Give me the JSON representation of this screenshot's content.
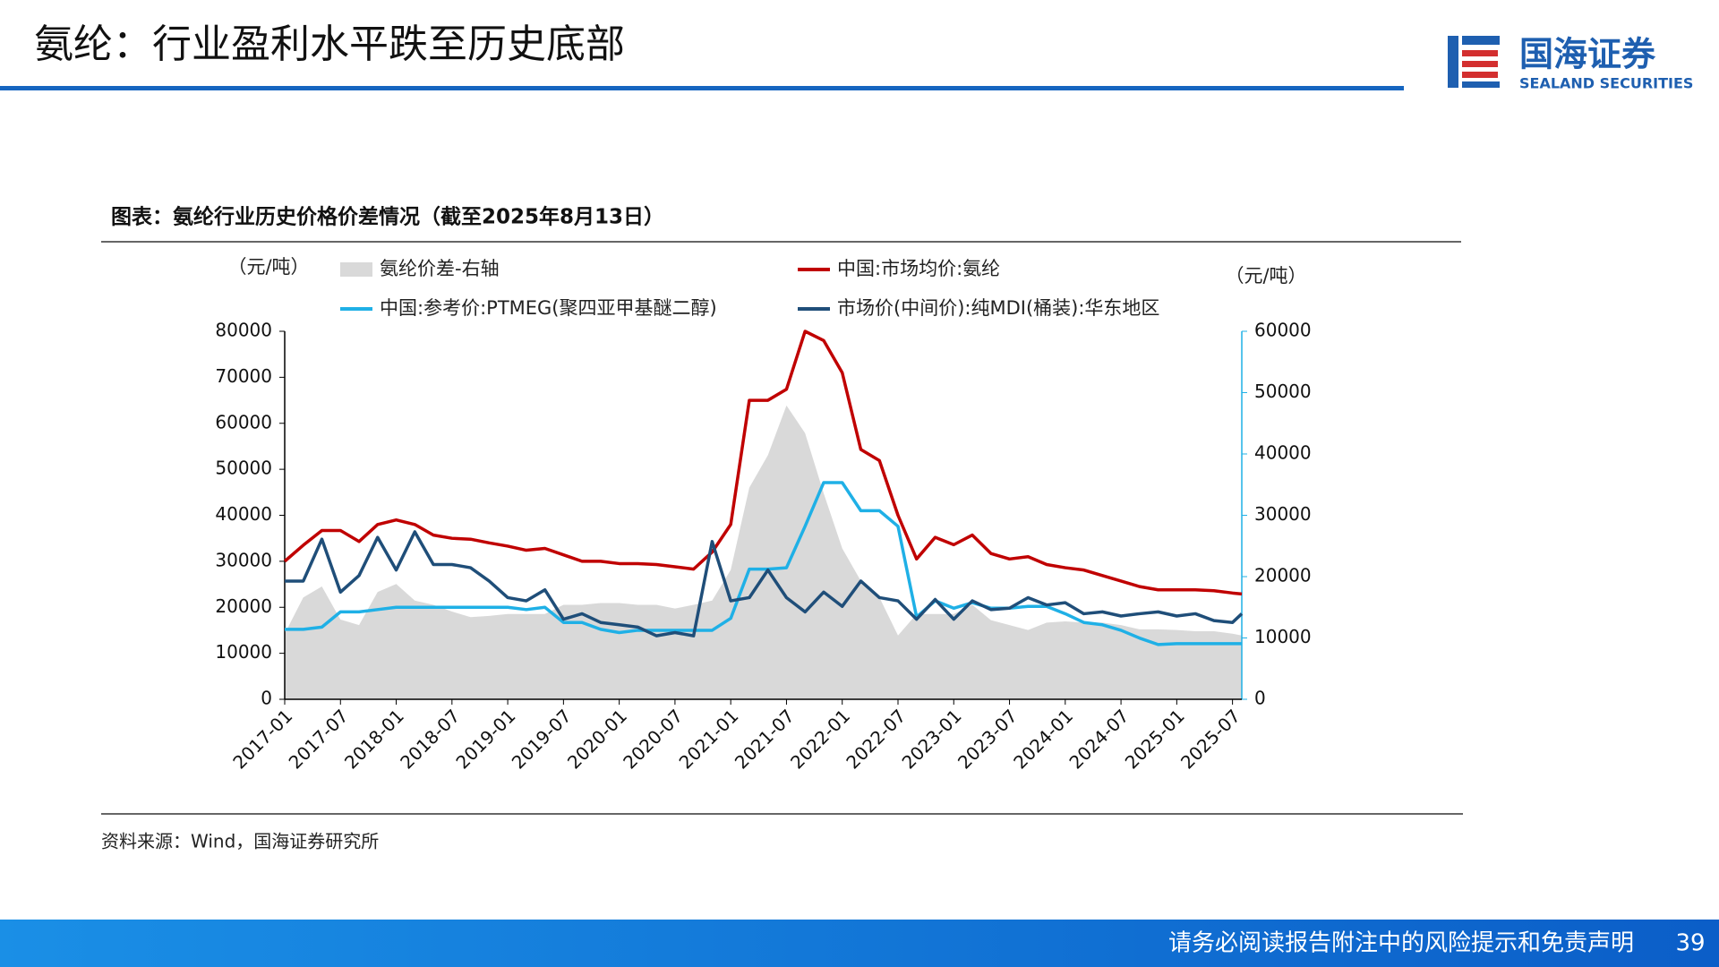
{
  "header": {
    "title": "氨纶：行业盈利水平跌至历史底部",
    "logo_name": "国海证券",
    "logo_subtitle": "SEALAND SECURITIES"
  },
  "chart_data": {
    "type": "line",
    "title": "图表：氨纶行业历史价格价差情况（截至2025年8月13日）",
    "y_label": "（元/吨）",
    "y2_label": "（元/吨）",
    "x": [
      "2017-01",
      "2017-03",
      "2017-05",
      "2017-07",
      "2017-09",
      "2017-11",
      "2018-01",
      "2018-03",
      "2018-05",
      "2018-07",
      "2018-09",
      "2018-11",
      "2019-01",
      "2019-03",
      "2019-05",
      "2019-07",
      "2019-09",
      "2019-11",
      "2020-01",
      "2020-03",
      "2020-05",
      "2020-07",
      "2020-09",
      "2020-11",
      "2021-01",
      "2021-03",
      "2021-05",
      "2021-07",
      "2021-09",
      "2021-11",
      "2022-01",
      "2022-03",
      "2022-05",
      "2022-07",
      "2022-09",
      "2022-11",
      "2023-01",
      "2023-03",
      "2023-05",
      "2023-07",
      "2023-09",
      "2023-11",
      "2024-01",
      "2024-03",
      "2024-05",
      "2024-07",
      "2024-09",
      "2024-11",
      "2025-01",
      "2025-03",
      "2025-05",
      "2025-07",
      "2025-08"
    ],
    "xticks": [
      "2017-01",
      "2017-07",
      "2018-01",
      "2018-07",
      "2019-01",
      "2019-07",
      "2020-01",
      "2020-07",
      "2021-01",
      "2021-07",
      "2022-01",
      "2022-07",
      "2023-01",
      "2023-07",
      "2024-01",
      "2024-07",
      "2025-01",
      "2025-07"
    ],
    "ylim": [
      0,
      80000
    ],
    "yticks": [
      0,
      10000,
      20000,
      30000,
      40000,
      50000,
      60000,
      70000,
      80000
    ],
    "y2lim": [
      0,
      60000
    ],
    "y2ticks": [
      0,
      10000,
      20000,
      30000,
      40000,
      50000,
      60000
    ],
    "series": [
      {
        "name": "氨纶价差-右轴",
        "type": "area",
        "axis": "y2",
        "color": "#d9d9d9",
        "values": [
          10700,
          16600,
          18400,
          13000,
          12100,
          17500,
          18800,
          16100,
          15400,
          14300,
          13400,
          13600,
          13900,
          13900,
          13900,
          15400,
          15400,
          15700,
          15700,
          15400,
          15400,
          14800,
          15400,
          16100,
          21100,
          34500,
          39800,
          47900,
          43400,
          33600,
          24600,
          19300,
          16600,
          10400,
          13900,
          13900,
          13900,
          15400,
          12900,
          12100,
          11300,
          12500,
          12700,
          12500,
          12500,
          12100,
          11400,
          11400,
          11300,
          11100,
          11100,
          10700,
          10400
        ]
      },
      {
        "name": "中国:市场均价:氨纶",
        "color": "#c00000",
        "values": [
          30000,
          33500,
          36700,
          36700,
          34300,
          38000,
          39000,
          38000,
          35700,
          35000,
          34800,
          34000,
          33300,
          32400,
          32800,
          31400,
          30000,
          30000,
          29500,
          29500,
          29300,
          28800,
          28300,
          32000,
          38000,
          65000,
          65000,
          67400,
          80000,
          78000,
          71000,
          54300,
          51900,
          40000,
          30500,
          35200,
          33600,
          35700,
          31700,
          30500,
          31000,
          29300,
          28600,
          28100,
          26900,
          25700,
          24500,
          23800,
          23800,
          23800,
          23600,
          23100,
          22900
        ]
      },
      {
        "name": "中国:参考价:PTMEG(聚四亚甲基醚二醇)",
        "color": "#1fb0e6",
        "values": [
          15200,
          15200,
          15700,
          19000,
          19000,
          19500,
          20000,
          20000,
          20000,
          20000,
          20000,
          20000,
          20000,
          19500,
          20000,
          16700,
          16700,
          15200,
          14500,
          15000,
          15000,
          15000,
          15000,
          15000,
          17600,
          28300,
          28300,
          28600,
          37600,
          47100,
          47100,
          41000,
          41000,
          37600,
          17900,
          21400,
          19800,
          21000,
          19800,
          19800,
          20200,
          20200,
          18600,
          16700,
          16200,
          15000,
          13300,
          11900,
          12100,
          12100,
          12100,
          12100,
          12100
        ]
      },
      {
        "name": "市场价(中间价):纯MDI(桶装):华东地区",
        "color": "#1f4e79",
        "values": [
          25700,
          25700,
          34800,
          23300,
          26900,
          35200,
          28100,
          36400,
          29300,
          29300,
          28600,
          25700,
          22100,
          21400,
          23800,
          17400,
          18600,
          16700,
          16200,
          15700,
          13800,
          14500,
          13800,
          34300,
          21400,
          22100,
          28100,
          22100,
          19000,
          23300,
          20200,
          25700,
          22100,
          21400,
          17400,
          21700,
          17400,
          21400,
          19500,
          19800,
          22100,
          20500,
          21000,
          18600,
          19000,
          18100,
          18600,
          19000,
          18100,
          18600,
          17100,
          16700,
          18600
        ]
      }
    ],
    "grid": false,
    "y2_axis_color": "#1fb0e6"
  },
  "source": "资料来源：Wind，国海证券研究所",
  "footer": {
    "disclaimer": "请务必阅读报告附注中的风险提示和免责声明",
    "page": 39
  }
}
